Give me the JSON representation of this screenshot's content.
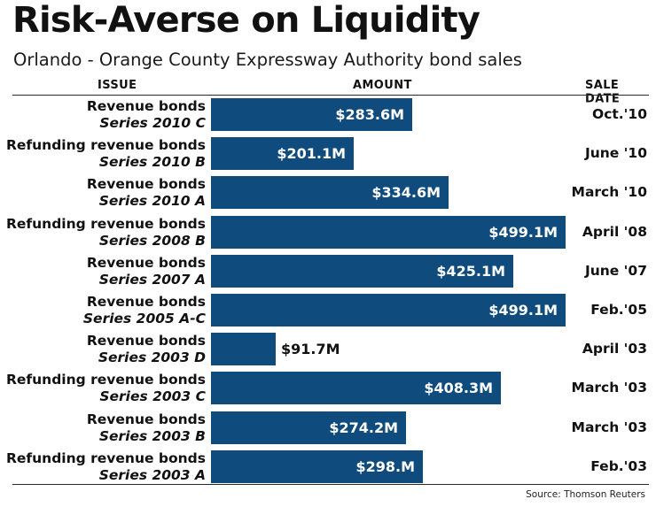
{
  "title": "Risk-Averse on Liquidity",
  "subtitle": "Orlando - Orange County Expressway Authority bond sales",
  "headers": {
    "issue": "ISSUE",
    "amount": "AMOUNT",
    "sale_date": "SALE DATE"
  },
  "source": "Source: Thomson Reuters",
  "colors": {
    "bar": "#0f4b7d",
    "bar_label": "#ffffff",
    "text": "#111111"
  },
  "chart_data": {
    "type": "bar",
    "orientation": "horizontal",
    "title": "Risk-Averse on Liquidity",
    "subtitle": "Orlando - Orange County Expressway Authority bond sales",
    "xlabel": "AMOUNT",
    "ylabel": "ISSUE",
    "unit": "$M",
    "grid": false,
    "rows": [
      {
        "issue": "Revenue bonds",
        "series": "Series 2010 C",
        "value": 283.6,
        "label": "$283.6M",
        "sale_date": "Oct.'10"
      },
      {
        "issue": "Refunding revenue bonds",
        "series": "Series 2010 B",
        "value": 201.1,
        "label": "$201.1M",
        "sale_date": "June '10"
      },
      {
        "issue": "Revenue bonds",
        "series": "Series 2010 A",
        "value": 334.6,
        "label": "$334.6M",
        "sale_date": "March '10"
      },
      {
        "issue": "Refunding revenue bonds",
        "series": "Series 2008 B",
        "value": 499.1,
        "label": "$499.1M",
        "sale_date": "April '08"
      },
      {
        "issue": "Revenue bonds",
        "series": "Series 2007 A",
        "value": 425.1,
        "label": "$425.1M",
        "sale_date": "June '07"
      },
      {
        "issue": "Revenue bonds",
        "series": "Series 2005 A-C",
        "value": 499.1,
        "label": "$499.1M",
        "sale_date": "Feb.'05"
      },
      {
        "issue": "Revenue bonds",
        "series": "Series 2003 D",
        "value": 91.7,
        "label": "$91.7M",
        "sale_date": "April '03"
      },
      {
        "issue": "Refunding revenue bonds",
        "series": "Series 2003 C",
        "value": 408.3,
        "label": "$408.3M",
        "sale_date": "March '03"
      },
      {
        "issue": "Revenue bonds",
        "series": "Series 2003 B",
        "value": 274.2,
        "label": "$274.2M",
        "sale_date": "March '03"
      },
      {
        "issue": "Refunding revenue bonds",
        "series": "Series 2003 A",
        "value": 298.0,
        "label": "$298.M",
        "sale_date": "Feb.'03"
      }
    ]
  }
}
